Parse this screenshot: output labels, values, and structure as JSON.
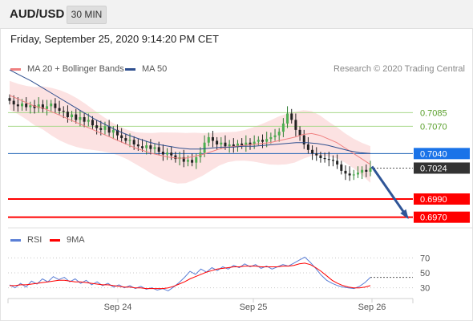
{
  "header": {
    "symbol": "AUD/USD",
    "timeframe_label": "30 MIN",
    "datetime": "Friday, September 25, 2020 9:14:20 PM CET"
  },
  "legend": {
    "ma20_label": "MA 20 + Bollinger Bands",
    "ma20_color": "#f08080",
    "ma50_label": "MA 50",
    "ma50_color": "#2f4f8f",
    "credit": "Research © 2020 Trading Central"
  },
  "chart_data": [
    {
      "type": "candlestick",
      "title": "",
      "x_tick_labels": [
        "Sep 24",
        "Sep 25",
        "Sep 26"
      ],
      "ylim": [
        0.696,
        0.7125
      ],
      "series": [
        {
          "name": "MA 20 + Bollinger Bands",
          "color": "#f08080"
        },
        {
          "name": "MA 50",
          "color": "#2f4f8f"
        }
      ],
      "levels": [
        {
          "value": "0.7085",
          "kind": "resistance",
          "color": "#7ac143"
        },
        {
          "value": "0.7070",
          "kind": "resistance",
          "color": "#7ac143"
        },
        {
          "value": "0.7040",
          "kind": "pivot",
          "color": "#1a73e8"
        },
        {
          "value": "0.7024",
          "kind": "last-price",
          "color": "#333333"
        },
        {
          "value": "0.6990",
          "kind": "support",
          "color": "#ff0000"
        },
        {
          "value": "0.6970",
          "kind": "support",
          "color": "#ff0000"
        }
      ],
      "close_path": [
        0.7098,
        0.7094,
        0.7092,
        0.7095,
        0.7091,
        0.7093,
        0.709,
        0.7094,
        0.7089,
        0.7092,
        0.7095,
        0.709,
        0.7087,
        0.7086,
        0.708,
        0.7083,
        0.7077,
        0.708,
        0.7075,
        0.7077,
        0.7071,
        0.7068,
        0.7066,
        0.707,
        0.7063,
        0.7066,
        0.706,
        0.7057,
        0.7054,
        0.7055,
        0.705,
        0.7048,
        0.7046,
        0.7049,
        0.7045,
        0.7047,
        0.7042,
        0.7039,
        0.7041,
        0.7038,
        0.7034,
        0.7036,
        0.7031,
        0.7033,
        0.703,
        0.7036,
        0.7041,
        0.7052,
        0.7058,
        0.7054,
        0.705,
        0.7052,
        0.7048,
        0.705,
        0.7047,
        0.7051,
        0.7049,
        0.7052,
        0.705,
        0.7053,
        0.7055,
        0.7053,
        0.7056,
        0.7058,
        0.706,
        0.7064,
        0.7073,
        0.7084,
        0.7077,
        0.7066,
        0.706,
        0.705,
        0.7044,
        0.704,
        0.7038,
        0.7035,
        0.7034,
        0.7033,
        0.7032,
        0.7028,
        0.7021,
        0.7018,
        0.7016,
        0.7017,
        0.7019,
        0.7022,
        0.702,
        0.7024
      ],
      "ma20_path": [
        0.7104,
        0.71,
        0.7096,
        0.7092,
        0.709,
        0.7086,
        0.7082,
        0.7078,
        0.7074,
        0.707,
        0.7066,
        0.7062,
        0.7058,
        0.7054,
        0.705,
        0.7046,
        0.7043,
        0.704,
        0.7038,
        0.7036,
        0.7035,
        0.7035,
        0.7037,
        0.7039,
        0.7042,
        0.7045,
        0.7047,
        0.7048,
        0.7049,
        0.705,
        0.7051,
        0.7052,
        0.7054,
        0.7056,
        0.7058,
        0.7061,
        0.7062,
        0.706,
        0.7056,
        0.7052,
        0.7046,
        0.704,
        0.7034,
        0.7028
      ],
      "ma50_path": [
        0.7132,
        0.7126,
        0.712,
        0.7113,
        0.7106,
        0.7099,
        0.7092,
        0.7085,
        0.7078,
        0.7072,
        0.7066,
        0.7061,
        0.7057,
        0.7053,
        0.705,
        0.7048,
        0.7046,
        0.7045,
        0.7045,
        0.7046,
        0.7047,
        0.7047,
        0.7048,
        0.7048,
        0.7049,
        0.705,
        0.7051,
        0.7052,
        0.7052,
        0.7051,
        0.7049,
        0.7046,
        0.7043,
        0.7041,
        0.704
      ],
      "projection": "down toward 0.6970"
    },
    {
      "type": "line",
      "title": "",
      "series": [
        {
          "name": "RSI",
          "color": "#5b7fd6"
        },
        {
          "name": "9MA",
          "color": "#ff0000"
        }
      ],
      "y_tick_labels": [
        "70",
        "50",
        "30"
      ],
      "ylim": [
        20,
        80
      ],
      "rsi_values": [
        34,
        30,
        36,
        31,
        39,
        35,
        42,
        38,
        45,
        41,
        44,
        38,
        42,
        36,
        40,
        34,
        38,
        33,
        36,
        31,
        34,
        30,
        33,
        29,
        32,
        28,
        30,
        27,
        29,
        26,
        31,
        37,
        44,
        52,
        48,
        55,
        51,
        57,
        53,
        58,
        55,
        60,
        57,
        62,
        58,
        61,
        56,
        59,
        55,
        58,
        61,
        59,
        63,
        67,
        71,
        64,
        56,
        47,
        40,
        36,
        33,
        31,
        30,
        29,
        32,
        37,
        44
      ],
      "ma9_values": [
        33,
        33,
        34,
        34,
        35,
        36,
        37,
        38,
        39,
        40,
        40,
        39,
        38,
        38,
        37,
        36,
        35,
        34,
        34,
        33,
        32,
        31,
        31,
        30,
        30,
        29,
        29,
        29,
        29,
        30,
        32,
        35,
        38,
        42,
        45,
        48,
        51,
        53,
        55,
        56,
        57,
        58,
        58,
        59,
        59,
        59,
        58,
        58,
        58,
        58,
        59,
        59,
        60,
        62,
        63,
        61,
        57,
        52,
        46,
        40,
        36,
        33,
        31,
        30,
        30,
        31,
        33
      ]
    }
  ],
  "rsi_legend": {
    "rsi_label": "RSI",
    "rsi_color": "#5b7fd6",
    "ma9_label": "9MA",
    "ma9_color": "#ff0000"
  }
}
